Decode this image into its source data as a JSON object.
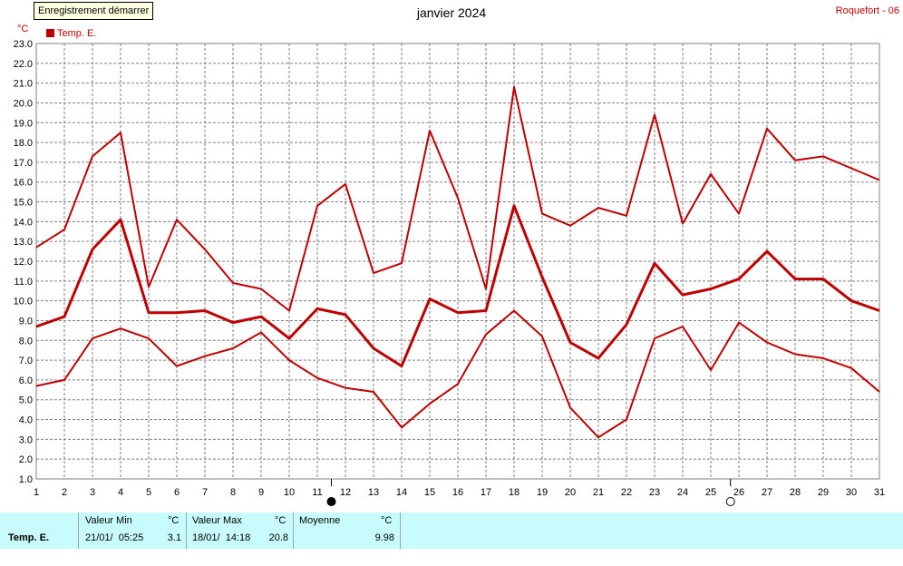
{
  "header": {
    "record_button": "Enregistrement démarrer",
    "title": "janvier 2024",
    "station": "Roquefort - 06"
  },
  "legend": {
    "unit": "°C",
    "label": "Temp. E."
  },
  "chart_data": {
    "type": "line",
    "title": "janvier 2024",
    "ylabel": "°C",
    "x": [
      1,
      2,
      3,
      4,
      5,
      6,
      7,
      8,
      9,
      10,
      11,
      12,
      13,
      14,
      15,
      16,
      17,
      18,
      19,
      20,
      21,
      22,
      23,
      24,
      25,
      26,
      27,
      28,
      29,
      30,
      31
    ],
    "xlim": [
      1,
      31
    ],
    "ylim": [
      1.0,
      23.0
    ],
    "yticks": [
      "1.0",
      "2.0",
      "3.0",
      "4.0",
      "5.0",
      "6.0",
      "7.0",
      "8.0",
      "9.0",
      "10.0",
      "11.0",
      "12.0",
      "13.0",
      "14.0",
      "15.0",
      "16.0",
      "17.0",
      "18.0",
      "19.0",
      "20.0",
      "21.0",
      "22.0",
      "23.0"
    ],
    "grid": true,
    "legend_position": "top-left",
    "color": "#c00000",
    "series": [
      {
        "role": "max",
        "values": [
          12.7,
          13.6,
          17.3,
          18.5,
          10.7,
          14.1,
          12.6,
          10.9,
          10.6,
          9.5,
          14.8,
          15.9,
          11.4,
          11.9,
          18.6,
          15.2,
          10.6,
          20.8,
          14.4,
          13.8,
          14.7,
          14.3,
          19.4,
          13.9,
          16.4,
          14.4,
          18.7,
          17.1,
          17.3,
          16.7,
          16.1
        ]
      },
      {
        "role": "mean",
        "name": "Temp. E.",
        "values": [
          8.7,
          9.2,
          12.6,
          14.1,
          9.4,
          9.4,
          9.5,
          8.9,
          9.2,
          8.1,
          9.6,
          9.3,
          7.6,
          6.7,
          10.1,
          9.4,
          9.5,
          14.8,
          11.2,
          7.9,
          7.1,
          8.8,
          11.9,
          10.3,
          10.6,
          11.1,
          12.5,
          11.1,
          11.1,
          10.0,
          9.5
        ]
      },
      {
        "role": "min",
        "values": [
          5.7,
          6.0,
          8.1,
          8.6,
          8.1,
          6.7,
          7.2,
          7.6,
          8.4,
          7.0,
          6.1,
          5.6,
          5.4,
          3.6,
          4.8,
          5.8,
          8.3,
          9.5,
          8.2,
          4.6,
          3.1,
          4.0,
          8.1,
          8.7,
          6.5,
          8.9,
          7.9,
          7.3,
          7.1,
          6.6,
          5.4
        ]
      }
    ],
    "moon_phases": [
      {
        "day": 11.5,
        "phase": "new"
      },
      {
        "day": 25.7,
        "phase": "full"
      }
    ]
  },
  "summary": {
    "series_label": "Temp. E.",
    "min_label": "Valeur Min",
    "min_unit": "°C",
    "min_date": "21/01/  05:25",
    "min_value": "3.1",
    "max_label": "Valeur Max",
    "max_unit": "°C",
    "max_date": "18/01/  14:18",
    "max_value": "20.8",
    "avg_label": "Moyenne",
    "avg_unit": "°C",
    "avg_value": "9.98"
  }
}
